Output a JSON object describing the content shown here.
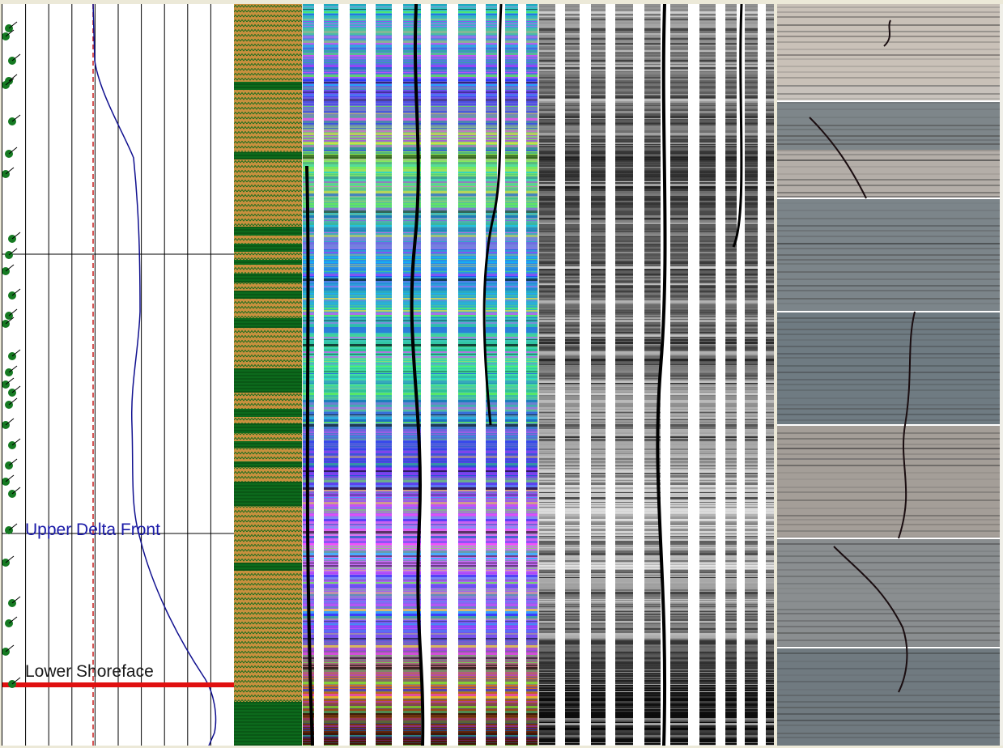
{
  "zones": [
    {
      "label": "Upper Delta Front",
      "color": "#1a1aa8"
    },
    {
      "label": "Lower Shoreface",
      "color": "#1a1a1a"
    }
  ],
  "colors": {
    "sand": "#c8903e",
    "shale": "#0c6a1c",
    "gr_curve": "#10108f",
    "cutoff": "#c81e1e",
    "boundary": "#e01010",
    "fossil": "#157a22"
  },
  "layers": [
    {
      "from": 0,
      "to": 96,
      "lith": "sand"
    },
    {
      "from": 96,
      "to": 106,
      "lith": "shale"
    },
    {
      "from": 106,
      "to": 183,
      "lith": "sand"
    },
    {
      "from": 183,
      "to": 192,
      "lith": "shale"
    },
    {
      "from": 192,
      "to": 275,
      "lith": "sand"
    },
    {
      "from": 275,
      "to": 286,
      "lith": "shale"
    },
    {
      "from": 286,
      "to": 296,
      "lith": "sand"
    },
    {
      "from": 296,
      "to": 306,
      "lith": "shale"
    },
    {
      "from": 306,
      "to": 316,
      "lith": "sand"
    },
    {
      "from": 316,
      "to": 322,
      "lith": "shale"
    },
    {
      "from": 322,
      "to": 333,
      "lith": "sand"
    },
    {
      "from": 333,
      "to": 344,
      "lith": "shale"
    },
    {
      "from": 344,
      "to": 354,
      "lith": "sand"
    },
    {
      "from": 354,
      "to": 364,
      "lith": "shale"
    },
    {
      "from": 364,
      "to": 388,
      "lith": "sand"
    },
    {
      "from": 388,
      "to": 400,
      "lith": "shale"
    },
    {
      "from": 400,
      "to": 450,
      "lith": "sand"
    },
    {
      "from": 450,
      "to": 480,
      "lith": "shale"
    },
    {
      "from": 480,
      "to": 500,
      "lith": "sand"
    },
    {
      "from": 500,
      "to": 510,
      "lith": "shale"
    },
    {
      "from": 510,
      "to": 518,
      "lith": "sand"
    },
    {
      "from": 518,
      "to": 530,
      "lith": "shale"
    },
    {
      "from": 530,
      "to": 540,
      "lith": "sand"
    },
    {
      "from": 540,
      "to": 548,
      "lith": "shale"
    },
    {
      "from": 548,
      "to": 565,
      "lith": "sand"
    },
    {
      "from": 565,
      "to": 572,
      "lith": "shale"
    },
    {
      "from": 572,
      "to": 590,
      "lith": "sand"
    },
    {
      "from": 590,
      "to": 620,
      "lith": "shale"
    },
    {
      "from": 620,
      "to": 690,
      "lith": "sand"
    },
    {
      "from": 690,
      "to": 700,
      "lith": "shale"
    },
    {
      "from": 700,
      "to": 862,
      "lith": "sand"
    },
    {
      "from": 862,
      "to": 916,
      "lith": "shale"
    }
  ]
}
